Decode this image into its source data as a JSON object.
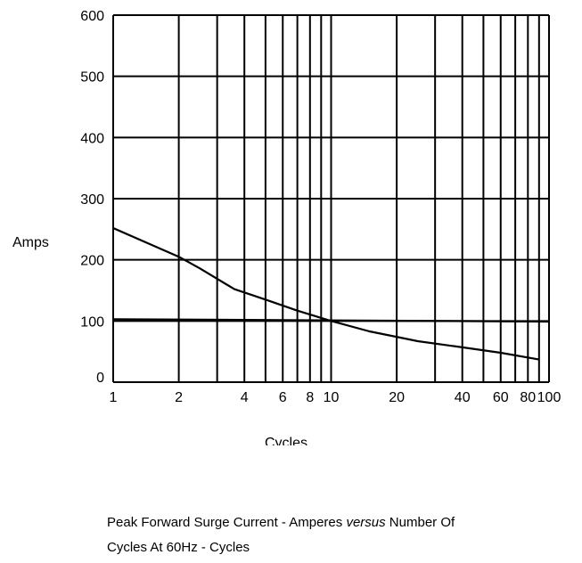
{
  "chart_data": {
    "type": "line",
    "xscale": "log",
    "xlim": [
      1,
      100
    ],
    "ylim": [
      0,
      600
    ],
    "grid": true,
    "xlabel": "Cycles",
    "ylabel": "Amps",
    "x_ticks": [
      1,
      2,
      4,
      6,
      8,
      10,
      20,
      40,
      60,
      80,
      100
    ],
    "x_tick_labels": [
      "1",
      "2",
      "4",
      "6",
      "8",
      "10",
      "20",
      "40",
      "60",
      "80",
      "100"
    ],
    "y_ticks": [
      0,
      100,
      200,
      300,
      400,
      500,
      600
    ],
    "y_tick_labels": [
      "0",
      "100",
      "200",
      "300",
      "400",
      "500",
      "600"
    ],
    "series": [
      {
        "x": [
          1,
          2,
          2.5,
          3.6,
          5,
          7,
          10,
          15,
          25,
          40,
          60,
          90
        ],
        "y": [
          252,
          205,
          186,
          152,
          135,
          117,
          100,
          83,
          67,
          57,
          48,
          37
        ]
      },
      {
        "x": [
          1,
          100
        ],
        "y": [
          103,
          99
        ]
      }
    ]
  },
  "caption": {
    "line1_before": "Peak Forward Surge Current - Amperes ",
    "line1_italic": "versus",
    "line1_after": " Number Of",
    "line2": "Cycles At 60Hz - Cycles"
  }
}
